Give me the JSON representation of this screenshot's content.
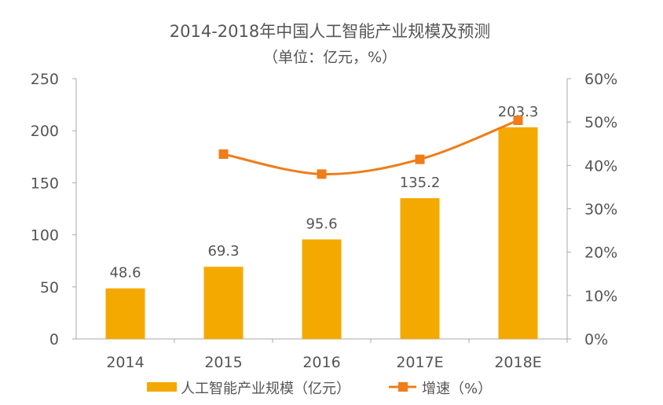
{
  "chart_data": {
    "type": "bar+line",
    "title": "2014-2018年中国人工智能产业规模及预测",
    "subtitle": "（单位：亿元，%）",
    "categories": [
      "2014",
      "2015",
      "2016",
      "2017E",
      "2018E"
    ],
    "series": [
      {
        "name": "人工智能产业规模（亿元）",
        "type": "bar",
        "axis": "left",
        "values": [
          48.6,
          69.3,
          95.6,
          135.2,
          203.3
        ],
        "labels": [
          "48.6",
          "69.3",
          "95.6",
          "135.2",
          "203.3"
        ]
      },
      {
        "name": "增速（%）",
        "type": "line",
        "axis": "right",
        "values": [
          null,
          42.6,
          38.0,
          41.4,
          50.4
        ]
      }
    ],
    "left_axis": {
      "range": [
        0,
        250
      ],
      "ticks": [
        "0",
        "50",
        "100",
        "150",
        "200",
        "250"
      ]
    },
    "right_axis": {
      "range": [
        0,
        60
      ],
      "ticks": [
        "0%",
        "10%",
        "20%",
        "30%",
        "40%",
        "50%",
        "60%"
      ]
    },
    "grid": false,
    "legend_position": "bottom",
    "colors": {
      "bar": "#F4A900",
      "line": "#EE7D1A"
    }
  }
}
